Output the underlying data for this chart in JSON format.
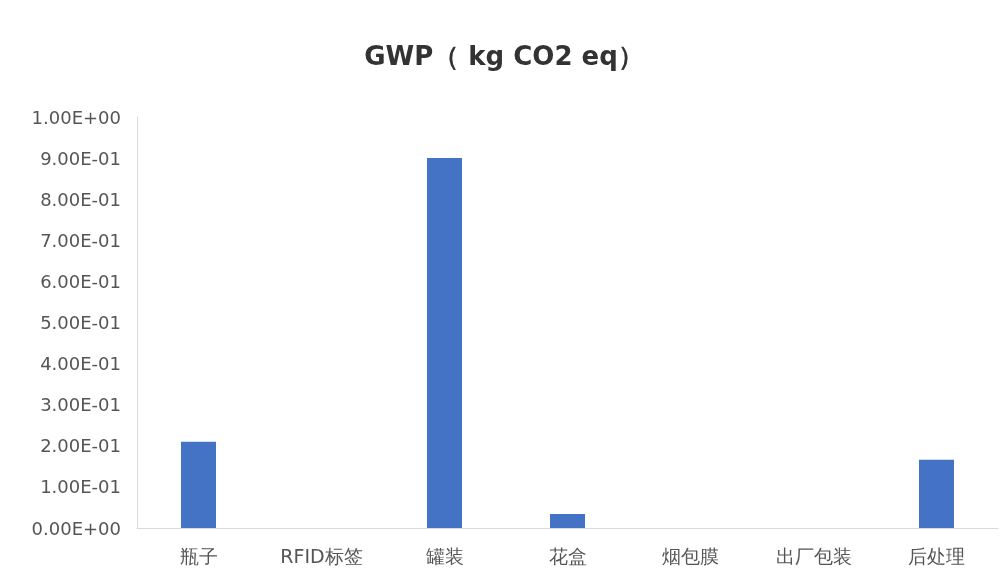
{
  "chart_data": {
    "type": "bar",
    "title": "GWP（ kg CO2 eq）",
    "categories": [
      "瓶子",
      "RFID标签",
      "罐装",
      "花盒",
      "烟包膜",
      "出厂包装",
      "后处理"
    ],
    "values": [
      0.21,
      0,
      0.9,
      0.034,
      0,
      0,
      0.166
    ],
    "color": "#4472c4",
    "ylim": [
      0,
      1
    ],
    "yticks": [
      {
        "value": 0,
        "label": "0.00E+00"
      },
      {
        "value": 0.1,
        "label": "1.00E-01"
      },
      {
        "value": 0.2,
        "label": "2.00E-01"
      },
      {
        "value": 0.3,
        "label": "3.00E-01"
      },
      {
        "value": 0.4,
        "label": "4.00E-01"
      },
      {
        "value": 0.5,
        "label": "5.00E-01"
      },
      {
        "value": 0.6,
        "label": "6.00E-01"
      },
      {
        "value": 0.7,
        "label": "7.00E-01"
      },
      {
        "value": 0.8,
        "label": "8.00E-01"
      },
      {
        "value": 0.9,
        "label": "9.00E-01"
      },
      {
        "value": 1,
        "label": "1.00E+00"
      }
    ],
    "grid": false
  }
}
